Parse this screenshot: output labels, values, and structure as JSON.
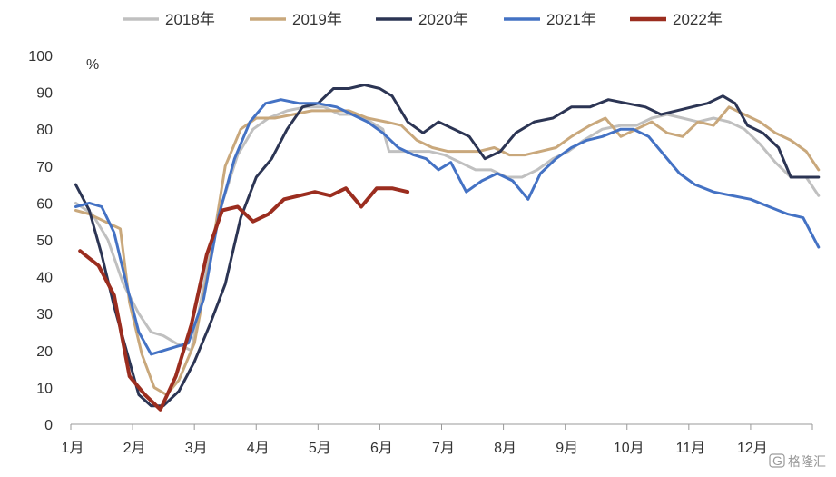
{
  "chart_data": {
    "type": "line",
    "title": "",
    "xlabel": "",
    "ylabel": "",
    "unit_label": "%",
    "ylim": [
      0,
      100
    ],
    "yticks": [
      0,
      10,
      20,
      30,
      40,
      50,
      60,
      70,
      80,
      90,
      100
    ],
    "xlim": [
      1,
      13
    ],
    "x_tick_labels": [
      "1月",
      "2月",
      "3月",
      "4月",
      "5月",
      "6月",
      "7月",
      "8月",
      "9月",
      "10月",
      "11月",
      "12月"
    ],
    "grid": false,
    "legend_position": "top",
    "series": [
      {
        "name": "2018年",
        "color": "#c0c0c0",
        "points": [
          [
            1.08,
            60
          ],
          [
            1.35,
            57
          ],
          [
            1.6,
            50
          ],
          [
            1.85,
            38
          ],
          [
            2.1,
            30
          ],
          [
            2.3,
            25
          ],
          [
            2.5,
            24
          ],
          [
            2.7,
            22
          ],
          [
            2.95,
            20
          ],
          [
            3.2,
            42
          ],
          [
            3.45,
            60
          ],
          [
            3.7,
            73
          ],
          [
            3.95,
            80
          ],
          [
            4.2,
            83
          ],
          [
            4.5,
            85
          ],
          [
            4.8,
            86
          ],
          [
            5.1,
            86
          ],
          [
            5.35,
            84
          ],
          [
            5.6,
            84
          ],
          [
            5.85,
            82
          ],
          [
            6.05,
            80
          ],
          [
            6.15,
            74
          ],
          [
            6.35,
            74
          ],
          [
            6.55,
            74
          ],
          [
            6.8,
            74
          ],
          [
            7.05,
            73
          ],
          [
            7.3,
            71
          ],
          [
            7.55,
            69
          ],
          [
            7.8,
            69
          ],
          [
            8.05,
            67
          ],
          [
            8.3,
            67
          ],
          [
            8.55,
            69
          ],
          [
            8.8,
            72
          ],
          [
            9.05,
            74
          ],
          [
            9.3,
            77
          ],
          [
            9.6,
            80
          ],
          [
            9.9,
            81
          ],
          [
            10.15,
            81
          ],
          [
            10.4,
            83
          ],
          [
            10.65,
            84
          ],
          [
            10.9,
            83
          ],
          [
            11.15,
            82
          ],
          [
            11.4,
            83
          ],
          [
            11.65,
            82
          ],
          [
            11.9,
            80
          ],
          [
            12.15,
            76
          ],
          [
            12.4,
            71
          ],
          [
            12.65,
            67
          ],
          [
            12.9,
            67
          ],
          [
            13.1,
            62
          ]
        ]
      },
      {
        "name": "2019年",
        "color": "#c9a87c",
        "points": [
          [
            1.08,
            58
          ],
          [
            1.3,
            57
          ],
          [
            1.55,
            55
          ],
          [
            1.8,
            53
          ],
          [
            1.95,
            33
          ],
          [
            2.15,
            19
          ],
          [
            2.35,
            10
          ],
          [
            2.55,
            8
          ],
          [
            2.75,
            12
          ],
          [
            3.0,
            22
          ],
          [
            3.25,
            44
          ],
          [
            3.5,
            70
          ],
          [
            3.75,
            80
          ],
          [
            4.0,
            83
          ],
          [
            4.3,
            83
          ],
          [
            4.6,
            84
          ],
          [
            4.9,
            85
          ],
          [
            5.2,
            85
          ],
          [
            5.5,
            85
          ],
          [
            5.8,
            83
          ],
          [
            6.1,
            82
          ],
          [
            6.35,
            81
          ],
          [
            6.6,
            77
          ],
          [
            6.85,
            75
          ],
          [
            7.1,
            74
          ],
          [
            7.35,
            74
          ],
          [
            7.6,
            74
          ],
          [
            7.85,
            75
          ],
          [
            8.1,
            73
          ],
          [
            8.35,
            73
          ],
          [
            8.6,
            74
          ],
          [
            8.85,
            75
          ],
          [
            9.1,
            78
          ],
          [
            9.4,
            81
          ],
          [
            9.65,
            83
          ],
          [
            9.9,
            78
          ],
          [
            10.15,
            80
          ],
          [
            10.4,
            82
          ],
          [
            10.65,
            79
          ],
          [
            10.9,
            78
          ],
          [
            11.15,
            82
          ],
          [
            11.4,
            81
          ],
          [
            11.65,
            86
          ],
          [
            11.9,
            84
          ],
          [
            12.15,
            82
          ],
          [
            12.4,
            79
          ],
          [
            12.65,
            77
          ],
          [
            12.9,
            74
          ],
          [
            13.1,
            69
          ]
        ]
      },
      {
        "name": "2020年",
        "color": "#2c3554",
        "points": [
          [
            1.08,
            65
          ],
          [
            1.3,
            58
          ],
          [
            1.5,
            46
          ],
          [
            1.7,
            32
          ],
          [
            1.9,
            20
          ],
          [
            2.1,
            8
          ],
          [
            2.3,
            5
          ],
          [
            2.5,
            5
          ],
          [
            2.75,
            9
          ],
          [
            3.0,
            17
          ],
          [
            3.25,
            27
          ],
          [
            3.5,
            38
          ],
          [
            3.75,
            56
          ],
          [
            4.0,
            67
          ],
          [
            4.25,
            72
          ],
          [
            4.5,
            80
          ],
          [
            4.75,
            86
          ],
          [
            5.0,
            87
          ],
          [
            5.25,
            91
          ],
          [
            5.5,
            91
          ],
          [
            5.75,
            92
          ],
          [
            6.0,
            91
          ],
          [
            6.2,
            89
          ],
          [
            6.45,
            82
          ],
          [
            6.7,
            79
          ],
          [
            6.95,
            82
          ],
          [
            7.2,
            80
          ],
          [
            7.45,
            78
          ],
          [
            7.7,
            72
          ],
          [
            7.95,
            74
          ],
          [
            8.2,
            79
          ],
          [
            8.5,
            82
          ],
          [
            8.8,
            83
          ],
          [
            9.1,
            86
          ],
          [
            9.4,
            86
          ],
          [
            9.7,
            88
          ],
          [
            10.0,
            87
          ],
          [
            10.3,
            86
          ],
          [
            10.55,
            84
          ],
          [
            10.8,
            85
          ],
          [
            11.05,
            86
          ],
          [
            11.3,
            87
          ],
          [
            11.55,
            89
          ],
          [
            11.75,
            87
          ],
          [
            11.95,
            81
          ],
          [
            12.2,
            79
          ],
          [
            12.45,
            75
          ],
          [
            12.65,
            67
          ],
          [
            12.9,
            67
          ],
          [
            13.1,
            67
          ]
        ]
      },
      {
        "name": "2021年",
        "color": "#4472c4",
        "points": [
          [
            1.08,
            59
          ],
          [
            1.3,
            60
          ],
          [
            1.5,
            59
          ],
          [
            1.7,
            52
          ],
          [
            1.9,
            38
          ],
          [
            2.1,
            25
          ],
          [
            2.3,
            19
          ],
          [
            2.5,
            20
          ],
          [
            2.7,
            21
          ],
          [
            2.9,
            22
          ],
          [
            3.15,
            34
          ],
          [
            3.4,
            57
          ],
          [
            3.65,
            72
          ],
          [
            3.9,
            82
          ],
          [
            4.15,
            87
          ],
          [
            4.4,
            88
          ],
          [
            4.7,
            87
          ],
          [
            5.0,
            87
          ],
          [
            5.3,
            86
          ],
          [
            5.55,
            84
          ],
          [
            5.8,
            82
          ],
          [
            6.05,
            79
          ],
          [
            6.3,
            75
          ],
          [
            6.55,
            73
          ],
          [
            6.75,
            72
          ],
          [
            6.95,
            69
          ],
          [
            7.15,
            71
          ],
          [
            7.4,
            63
          ],
          [
            7.65,
            66
          ],
          [
            7.9,
            68
          ],
          [
            8.15,
            66
          ],
          [
            8.4,
            61
          ],
          [
            8.6,
            68
          ],
          [
            8.85,
            72
          ],
          [
            9.1,
            75
          ],
          [
            9.35,
            77
          ],
          [
            9.6,
            78
          ],
          [
            9.9,
            80
          ],
          [
            10.1,
            80
          ],
          [
            10.35,
            78
          ],
          [
            10.6,
            73
          ],
          [
            10.85,
            68
          ],
          [
            11.1,
            65
          ],
          [
            11.4,
            63
          ],
          [
            11.7,
            62
          ],
          [
            12.0,
            61
          ],
          [
            12.3,
            59
          ],
          [
            12.6,
            57
          ],
          [
            12.85,
            56
          ],
          [
            13.1,
            48
          ]
        ]
      },
      {
        "name": "2022年",
        "color": "#9b2d1f",
        "points": [
          [
            1.15,
            47
          ],
          [
            1.45,
            43
          ],
          [
            1.7,
            35
          ],
          [
            1.95,
            13
          ],
          [
            2.2,
            8
          ],
          [
            2.45,
            4
          ],
          [
            2.7,
            13
          ],
          [
            2.95,
            27
          ],
          [
            3.2,
            46
          ],
          [
            3.45,
            58
          ],
          [
            3.7,
            59
          ],
          [
            3.95,
            55
          ],
          [
            4.2,
            57
          ],
          [
            4.45,
            61
          ],
          [
            4.7,
            62
          ],
          [
            4.95,
            63
          ],
          [
            5.2,
            62
          ],
          [
            5.45,
            64
          ],
          [
            5.7,
            59
          ],
          [
            5.95,
            64
          ],
          [
            6.2,
            64
          ],
          [
            6.45,
            63
          ]
        ]
      }
    ]
  },
  "watermark": {
    "icon": "gelonghui-logo-icon",
    "text": "格隆汇"
  }
}
